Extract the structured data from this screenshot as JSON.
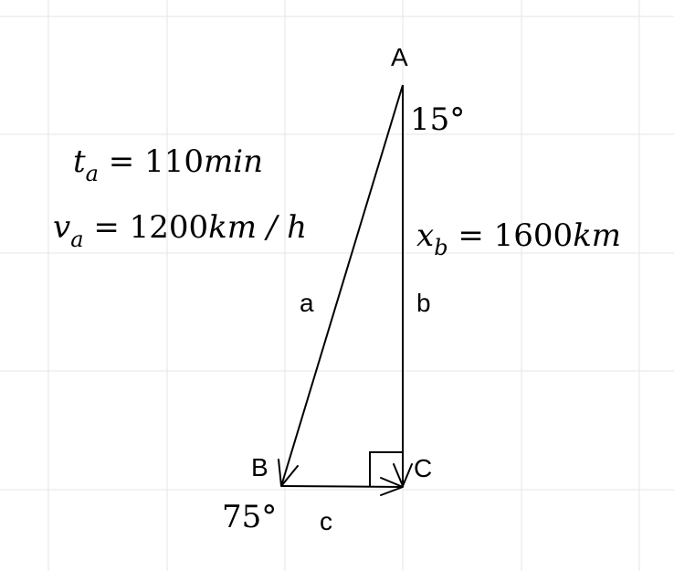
{
  "vertices": {
    "A": "A",
    "B": "B",
    "C": "C"
  },
  "sides": {
    "a": "a",
    "b": "b",
    "c": "c"
  },
  "angles": {
    "at_A": "15°",
    "at_B": "75°"
  },
  "equations": {
    "t": {
      "var": "t",
      "sub": "a",
      "rhs": " = 110",
      "unit": "min"
    },
    "v": {
      "var": "v",
      "sub": "a",
      "rhs": " = 1200",
      "unit": "km / h"
    },
    "x": {
      "var": "x",
      "sub": "b",
      "rhs": " = 1600",
      "unit": "km"
    }
  }
}
